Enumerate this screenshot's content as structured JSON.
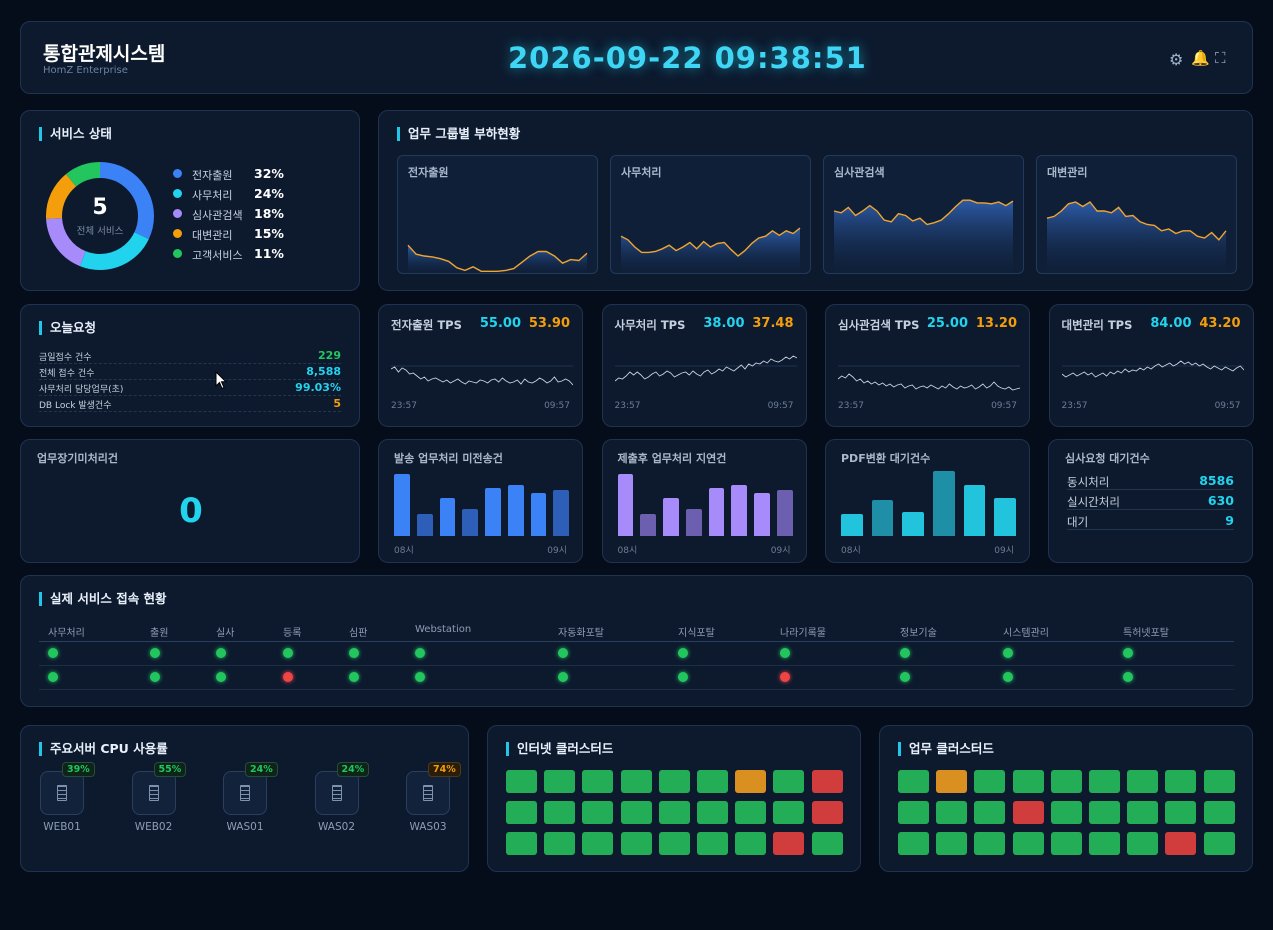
{
  "header": {
    "title": "통합관제시스템",
    "subtitle": "HomZ Enterprise",
    "datetime": "2026-09-22 09:38:51"
  },
  "service_status": {
    "title": "서비스 상태",
    "total": "5",
    "total_label": "전체 서비스",
    "items": [
      {
        "name": "전자출원",
        "pct": "32%",
        "value": 32,
        "color": "#3b82f6"
      },
      {
        "name": "사무처리",
        "pct": "24%",
        "value": 24,
        "color": "#22d3ee"
      },
      {
        "name": "심사관검색",
        "pct": "18%",
        "value": 18,
        "color": "#a78bfa"
      },
      {
        "name": "대변관리",
        "pct": "15%",
        "value": 15,
        "color": "#f59e0b"
      },
      {
        "name": "고객서비스",
        "pct": "11%",
        "value": 11,
        "color": "#22c55e"
      }
    ]
  },
  "group_load": {
    "title": "업무 그룹별 부하현황",
    "charts": [
      {
        "name": "전자출원",
        "values": [
          32,
          22,
          20,
          19,
          17,
          14,
          7,
          4,
          8,
          3,
          3,
          3,
          4,
          6,
          13,
          20,
          25,
          25,
          20,
          12,
          16,
          15,
          23
        ]
      },
      {
        "name": "사무처리",
        "values": [
          42,
          38,
          30,
          24,
          24,
          25,
          28,
          32,
          26,
          30,
          35,
          28,
          36,
          30,
          34,
          35,
          27,
          20,
          26,
          34,
          40,
          42,
          48,
          43,
          48,
          45,
          51
        ]
      },
      {
        "name": "심사관검색",
        "values": [
          70,
          68,
          74,
          65,
          70,
          76,
          70,
          60,
          58,
          67,
          65,
          59,
          62,
          55,
          57,
          60,
          67,
          75,
          82,
          82,
          79,
          79,
          78,
          80,
          76,
          81
        ]
      },
      {
        "name": "대변관리",
        "values": [
          62,
          64,
          70,
          78,
          80,
          75,
          80,
          70,
          70,
          68,
          74,
          64,
          65,
          58,
          55,
          54,
          48,
          50,
          45,
          48,
          48,
          42,
          40,
          46,
          38,
          48
        ]
      }
    ]
  },
  "today_request": {
    "title": "오늘요청",
    "rows": [
      {
        "name": "금일접수 건수",
        "value": "229",
        "color": "#22c55e"
      },
      {
        "name": "전체 접수 건수",
        "value": "8,588",
        "color": "#22d3ee"
      },
      {
        "name": "사무처리 담당업무(초)",
        "value": "99.03%",
        "color": "#22d3ee"
      },
      {
        "name": "DB Lock 발생건수",
        "value": "5",
        "color": "#f59e0b"
      }
    ]
  },
  "tps": [
    {
      "name": "전자출원 TPS",
      "v1": "55.00",
      "v2": "53.90",
      "start": "23:57",
      "end": "09:57",
      "values": [
        50,
        52,
        47,
        51,
        49,
        45,
        46,
        43,
        40,
        42,
        38,
        40,
        41,
        39,
        37,
        39,
        36,
        38,
        40,
        37,
        35,
        38,
        37,
        36,
        39,
        38,
        36,
        39,
        40,
        37,
        41,
        38,
        36,
        37,
        39,
        35,
        40,
        37,
        36,
        38,
        41,
        39,
        36,
        38,
        42,
        37,
        38,
        40,
        38,
        34
      ]
    },
    {
      "name": "사무처리 TPS",
      "v1": "38.00",
      "v2": "37.48",
      "start": "23:57",
      "end": "09:57",
      "values": [
        38,
        41,
        40,
        43,
        47,
        44,
        47,
        44,
        40,
        42,
        45,
        47,
        43,
        45,
        48,
        46,
        42,
        44,
        46,
        47,
        44,
        48,
        45,
        43,
        47,
        49,
        45,
        47,
        50,
        48,
        52,
        50,
        48,
        51,
        54,
        50,
        55,
        53,
        56,
        55,
        58,
        56,
        60,
        58,
        57,
        59,
        62,
        60,
        63,
        61
      ]
    },
    {
      "name": "심사관검색 TPS",
      "v1": "25.00",
      "v2": "13.20",
      "start": "23:57",
      "end": "09:57",
      "values": [
        40,
        43,
        41,
        45,
        42,
        38,
        40,
        36,
        38,
        35,
        37,
        34,
        36,
        33,
        35,
        32,
        34,
        35,
        31,
        33,
        34,
        30,
        32,
        33,
        31,
        34,
        32,
        30,
        33,
        31,
        35,
        32,
        30,
        33,
        31,
        32,
        34,
        30,
        32,
        35,
        31,
        33,
        37,
        33,
        31,
        30,
        32,
        29,
        30,
        31
      ]
    },
    {
      "name": "대변관리 TPS",
      "v1": "84.00",
      "v2": "43.20",
      "start": "23:57",
      "end": "09:57",
      "values": [
        45,
        42,
        44,
        46,
        43,
        45,
        47,
        44,
        46,
        42,
        44,
        46,
        43,
        47,
        45,
        48,
        46,
        50,
        47,
        49,
        48,
        51,
        49,
        52,
        50,
        53,
        55,
        52,
        54,
        56,
        53,
        55,
        58,
        55,
        57,
        54,
        56,
        53,
        55,
        52,
        50,
        53,
        51,
        49,
        52,
        50,
        48,
        51,
        53,
        49
      ]
    }
  ],
  "pending": {
    "title": "업무장기미처리건",
    "value": "0"
  },
  "bar_panels": [
    {
      "name": "발송 업무처리 미전송건",
      "start": "08시",
      "end": "09시",
      "values": [
        62,
        22,
        38,
        27,
        48,
        51,
        43,
        46
      ]
    },
    {
      "name": "제출후 업무처리 지연건",
      "start": "08시",
      "end": "09시",
      "values": [
        62,
        22,
        38,
        27,
        48,
        51,
        43,
        46
      ]
    },
    {
      "name": "PDF변환 대기건수",
      "start": "08시",
      "end": "09시",
      "values": [
        22,
        36,
        24,
        65,
        51,
        38
      ]
    }
  ],
  "review_wait": {
    "title": "심사요청 대기건수",
    "rows": [
      {
        "name": "동시처리",
        "value": "8586"
      },
      {
        "name": "실시간처리",
        "value": "630"
      },
      {
        "name": "대기",
        "value": "9"
      }
    ]
  },
  "access": {
    "title": "실제 서비스 접속 현황",
    "columns": [
      "사무처리",
      "출원",
      "실사",
      "등록",
      "심판",
      "Webstation",
      "자동화포탈",
      "지식포탈",
      "나라기록물",
      "정보기술",
      "시스템관리",
      "특허넷포탈"
    ],
    "rows": [
      [
        "ok",
        "ok",
        "ok",
        "ok",
        "ok",
        "ok",
        "ok",
        "ok",
        "ok",
        "ok",
        "ok",
        "ok"
      ],
      [
        "ok",
        "ok",
        "ok",
        "err",
        "ok",
        "ok",
        "ok",
        "ok",
        "err",
        "ok",
        "ok",
        "ok"
      ]
    ]
  },
  "cpu": {
    "title": "주요서버 CPU 사용률",
    "servers": [
      {
        "name": "WEB01",
        "pct": "39%",
        "color": "#22c55e"
      },
      {
        "name": "WEB02",
        "pct": "55%",
        "color": "#22c55e"
      },
      {
        "name": "WAS01",
        "pct": "24%",
        "color": "#22c55e"
      },
      {
        "name": "WAS02",
        "pct": "24%",
        "color": "#22c55e"
      },
      {
        "name": "WAS03",
        "pct": "74%",
        "color": "#f59e0b"
      }
    ]
  },
  "internet_cluster": {
    "title": "인터넷 클러스터드",
    "grid": [
      [
        "g",
        "g",
        "g",
        "g",
        "g",
        "g",
        "y",
        "g",
        "r"
      ],
      [
        "g",
        "g",
        "g",
        "g",
        "g",
        "g",
        "g",
        "g",
        "r"
      ],
      [
        "g",
        "g",
        "g",
        "g",
        "g",
        "g",
        "g",
        "r",
        "g"
      ]
    ]
  },
  "biz_cluster": {
    "title": "업무 클러스터드",
    "grid": [
      [
        "g",
        "y",
        "g",
        "g",
        "g",
        "g",
        "g",
        "g",
        "g"
      ],
      [
        "g",
        "g",
        "g",
        "r",
        "g",
        "g",
        "g",
        "g",
        "g"
      ],
      [
        "g",
        "g",
        "g",
        "g",
        "g",
        "g",
        "g",
        "r",
        "g"
      ]
    ]
  },
  "colors": {
    "ok": "#22c55e",
    "err": "#ef4444",
    "warn": "#f59e0b",
    "accent": "#22d3ee"
  }
}
